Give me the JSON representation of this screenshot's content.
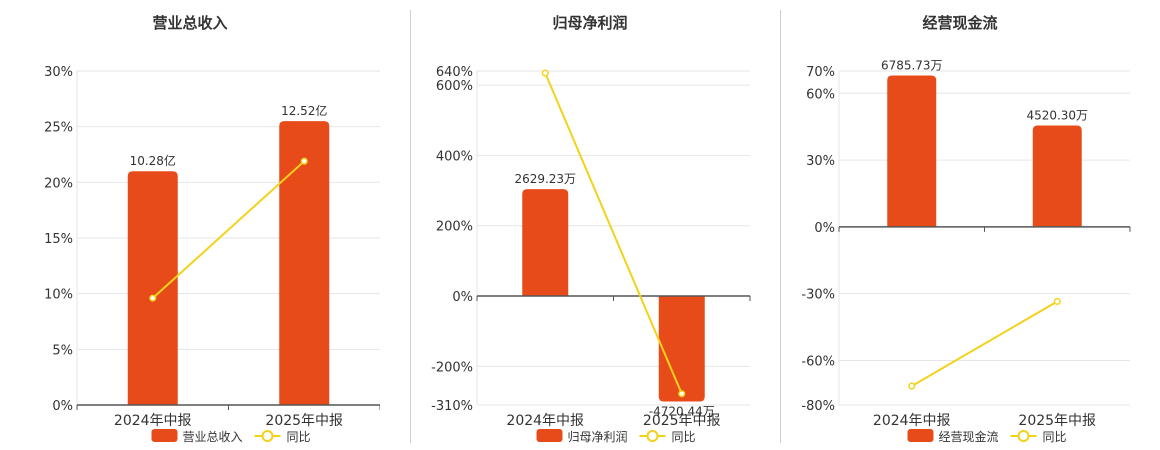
{
  "colors": {
    "bar": "#e84b1a",
    "line": "#f2d21b",
    "grid": "#e6e6e6",
    "axis": "#555555",
    "text": "#333333"
  },
  "chart_data": [
    {
      "type": "bar",
      "title": "营业总收入",
      "categories": [
        "2024年中报",
        "2025年中报"
      ],
      "bar_series": {
        "name": "营业总收入",
        "values": [
          21,
          25.5
        ],
        "labels": [
          "10.28亿",
          "12.52亿"
        ]
      },
      "line_series": {
        "name": "同比",
        "values": [
          9.6,
          21.9
        ]
      },
      "ylim": [
        0,
        30
      ],
      "yticks": [
        0,
        5,
        10,
        15,
        20,
        25,
        30
      ],
      "ytick_labels": [
        "0%",
        "5%",
        "10%",
        "15%",
        "20%",
        "25%",
        "30%"
      ],
      "grid": true,
      "legend": "bottom"
    },
    {
      "type": "bar",
      "title": "归母净利润",
      "categories": [
        "2024年中报",
        "2025年中报"
      ],
      "bar_series": {
        "name": "归母净利润",
        "values": [
          304,
          -300
        ],
        "labels": [
          "2629.23万",
          "-4720.44万"
        ]
      },
      "line_series": {
        "name": "同比",
        "values": [
          634,
          -278
        ]
      },
      "ylim": [
        -310,
        640
      ],
      "yticks": [
        -310,
        -200,
        0,
        200,
        400,
        600,
        640
      ],
      "ytick_labels": [
        "-310%",
        "-200%",
        "0%",
        "200%",
        "400%",
        "600%",
        "640%"
      ],
      "grid": true,
      "legend": "bottom"
    },
    {
      "type": "bar",
      "title": "经营现金流",
      "categories": [
        "2024年中报",
        "2025年中报"
      ],
      "bar_series": {
        "name": "经营现金流",
        "values": [
          68,
          45.5
        ],
        "labels": [
          "6785.73万",
          "4520.30万"
        ]
      },
      "line_series": {
        "name": "同比",
        "values": [
          -71.5,
          -33.5
        ]
      },
      "ylim": [
        -80,
        70
      ],
      "yticks": [
        -80,
        -60,
        -30,
        0,
        30,
        60,
        70
      ],
      "ytick_labels": [
        "-80%",
        "-60%",
        "-30%",
        "0%",
        "30%",
        "60%",
        "70%"
      ],
      "grid": true,
      "legend": "bottom"
    }
  ]
}
